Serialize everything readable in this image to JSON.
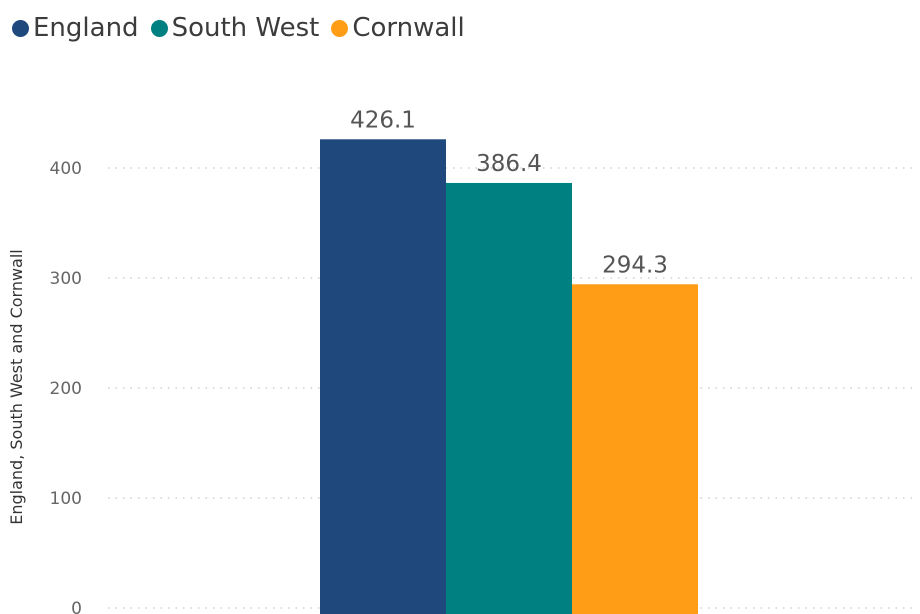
{
  "chart_data": {
    "type": "bar",
    "categories": [
      ""
    ],
    "series": [
      {
        "name": "England",
        "values": [
          426.1
        ],
        "color": "#1f497d"
      },
      {
        "name": "South West",
        "values": [
          386.4
        ],
        "color": "#008080"
      },
      {
        "name": "Cornwall",
        "values": [
          294.3
        ],
        "color": "#ff9e16"
      }
    ],
    "data_labels": [
      "426.1",
      "386.4",
      "294.3"
    ],
    "ylabel": "England, South West and Cornwall",
    "yticks": [
      0,
      100,
      200,
      300,
      400
    ],
    "ytick_labels": [
      "0",
      "100",
      "200",
      "300",
      "400"
    ],
    "ylim": [
      0,
      430
    ],
    "grid": true,
    "legend": "top-left"
  }
}
